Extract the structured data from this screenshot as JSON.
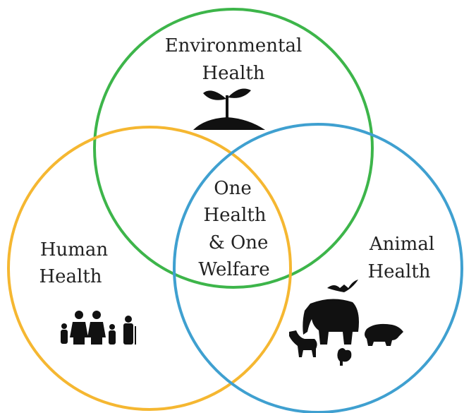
{
  "circles": [
    {
      "label_lines": [
        "Environmental",
        "Health"
      ]
    },
    {
      "label_lines": [
        "Human",
        "Health"
      ]
    },
    {
      "label_lines": [
        "Animal",
        "Health"
      ]
    }
  ],
  "center": {
    "label_lines": [
      "One",
      "Health",
      "& One",
      "Welfare"
    ]
  }
}
